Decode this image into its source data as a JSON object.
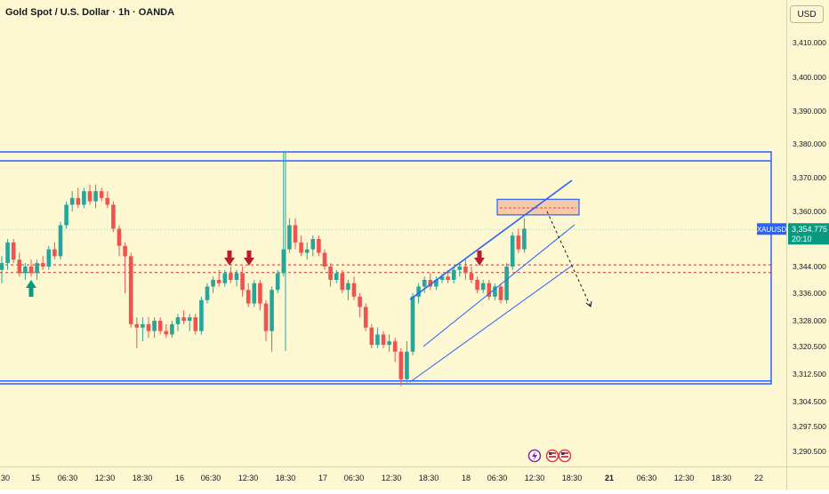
{
  "header": {
    "title": "Gold Spot / U.S. Dollar · 1h · OANDA"
  },
  "axis": {
    "currency_button": "USD"
  },
  "price_tag": {
    "symbol": "XAUUSD",
    "price": "3,354.775",
    "countdown": "20:10"
  },
  "colors": {
    "background": "#fdf8d2",
    "up_candle": "#26a69a",
    "down_candle": "#ef5350",
    "drawing_blue": "#2962ff",
    "tag_blue": "#2962ff",
    "zone_fill": "#f6c9a8",
    "arrow_up": "#089981",
    "arrow_down": "#b71c2f"
  },
  "icons": [
    "flash-event-icon",
    "us-flag-event-icon",
    "us-flag-event-icon"
  ],
  "chart_data": {
    "type": "candlestick",
    "title": "Gold Spot / U.S. Dollar · 1h · OANDA",
    "y_axis": {
      "side": "right",
      "ticks": [
        3410.0,
        3400.0,
        3390.0,
        3380.0,
        3370.0,
        3360.0,
        3344.0,
        3336.0,
        3328.0,
        3320.5,
        3312.5,
        3304.5,
        3297.5,
        3290.5
      ],
      "tick_labels": [
        "3,410.000",
        "3,400.000",
        "3,390.000",
        "3,380.000",
        "3,370.000",
        "3,360.000",
        "3,344.000",
        "3,336.000",
        "3,328.000",
        "3,320.500",
        "3,312.500",
        "3,304.500",
        "3,297.500",
        "3,290.500"
      ]
    },
    "x_axis": {
      "tick_labels": [
        "30",
        "15",
        "06:30",
        "12:30",
        "18:30",
        "16",
        "06:30",
        "12:30",
        "18:30",
        "17",
        "06:30",
        "12:30",
        "18:30",
        "18",
        "06:30",
        "12:30",
        "18:30",
        "21",
        "06:30",
        "12:30",
        "18:30",
        "22"
      ],
      "bold_labels": [
        "21"
      ]
    },
    "ohlc": [
      [
        3343.0,
        3347.0,
        3339.0,
        3345.0
      ],
      [
        3345.0,
        3352.0,
        3343.0,
        3351.0
      ],
      [
        3351.0,
        3352.0,
        3345.0,
        3346.0
      ],
      [
        3346.0,
        3348.0,
        3341.0,
        3342.0
      ],
      [
        3342.0,
        3345.0,
        3340.0,
        3344.0
      ],
      [
        3344.0,
        3346.0,
        3341.0,
        3342.0
      ],
      [
        3342.0,
        3346.0,
        3340.0,
        3345.0
      ],
      [
        3345.0,
        3347.0,
        3343.0,
        3344.0
      ],
      [
        3344.0,
        3350.0,
        3343.0,
        3349.0
      ],
      [
        3349.0,
        3351.0,
        3346.0,
        3347.0
      ],
      [
        3347.0,
        3357.0,
        3346.0,
        3356.0
      ],
      [
        3356.0,
        3363.0,
        3355.0,
        3362.0
      ],
      [
        3362.0,
        3366.0,
        3360.0,
        3364.0
      ],
      [
        3364.0,
        3367.0,
        3361.0,
        3362.0
      ],
      [
        3362.0,
        3367.0,
        3361.0,
        3366.0
      ],
      [
        3366.0,
        3368.0,
        3362.0,
        3363.0
      ],
      [
        3363.0,
        3368.0,
        3361.0,
        3366.0
      ],
      [
        3366.0,
        3367.0,
        3363.0,
        3364.0
      ],
      [
        3364.0,
        3366.0,
        3361.0,
        3362.0
      ],
      [
        3362.0,
        3363.0,
        3354.0,
        3355.0
      ],
      [
        3355.0,
        3356.0,
        3347.0,
        3350.0
      ],
      [
        3350.0,
        3351.0,
        3336.0,
        3347.0
      ],
      [
        3347.0,
        3348.0,
        3326.0,
        3327.0
      ],
      [
        3327.0,
        3329.0,
        3320.0,
        3326.0
      ],
      [
        3326.0,
        3329.0,
        3322.0,
        3327.0
      ],
      [
        3327.0,
        3329.0,
        3323.0,
        3325.0
      ],
      [
        3325.0,
        3329.0,
        3323.0,
        3328.0
      ],
      [
        3328.0,
        3329.0,
        3324.0,
        3325.0
      ],
      [
        3325.0,
        3327.0,
        3323.0,
        3324.0
      ],
      [
        3324.0,
        3328.0,
        3323.0,
        3327.0
      ],
      [
        3327.0,
        3330.0,
        3325.0,
        3329.0
      ],
      [
        3329.0,
        3331.0,
        3327.0,
        3328.0
      ],
      [
        3328.0,
        3330.0,
        3325.0,
        3329.0
      ],
      [
        3329.0,
        3330.0,
        3324.0,
        3325.0
      ],
      [
        3325.0,
        3335.0,
        3324.0,
        3334.0
      ],
      [
        3334.0,
        3339.0,
        3333.0,
        3338.0
      ],
      [
        3338.0,
        3341.0,
        3336.0,
        3340.0
      ],
      [
        3340.0,
        3343.0,
        3338.0,
        3339.0
      ],
      [
        3339.0,
        3343.0,
        3338.0,
        3342.0
      ],
      [
        3342.0,
        3344.0,
        3339.0,
        3340.0
      ],
      [
        3340.0,
        3343.0,
        3338.0,
        3342.0
      ],
      [
        3342.0,
        3344.0,
        3335.0,
        3337.0
      ],
      [
        3337.0,
        3339.0,
        3332.0,
        3333.0
      ],
      [
        3333.0,
        3340.0,
        3332.0,
        3339.0
      ],
      [
        3339.0,
        3340.0,
        3331.0,
        3333.0
      ],
      [
        3333.0,
        3334.0,
        3322.0,
        3325.0
      ],
      [
        3325.0,
        3338.0,
        3319.0,
        3337.0
      ],
      [
        3337.0,
        3343.0,
        3336.0,
        3342.0
      ],
      [
        3342.0,
        3378.0,
        3341.0,
        3349.0
      ],
      [
        3349.0,
        3358.0,
        3348.0,
        3356.0
      ],
      [
        3356.0,
        3358.0,
        3349.0,
        3351.0
      ],
      [
        3351.0,
        3353.0,
        3347.0,
        3348.0
      ],
      [
        3348.0,
        3351.0,
        3346.0,
        3349.0
      ],
      [
        3349.0,
        3353.0,
        3347.0,
        3352.0
      ],
      [
        3352.0,
        3353.0,
        3347.0,
        3348.0
      ],
      [
        3348.0,
        3349.0,
        3343.0,
        3344.0
      ],
      [
        3344.0,
        3345.0,
        3338.0,
        3340.0
      ],
      [
        3340.0,
        3343.0,
        3339.0,
        3342.0
      ],
      [
        3342.0,
        3343.0,
        3336.0,
        3337.0
      ],
      [
        3337.0,
        3340.0,
        3334.0,
        3339.0
      ],
      [
        3339.0,
        3341.0,
        3334.0,
        3335.0
      ],
      [
        3335.0,
        3336.0,
        3329.0,
        3332.0
      ],
      [
        3332.0,
        3333.0,
        3325.0,
        3326.0
      ],
      [
        3326.0,
        3327.0,
        3320.0,
        3321.0
      ],
      [
        3321.0,
        3326.0,
        3320.0,
        3324.0
      ],
      [
        3324.0,
        3325.0,
        3320.0,
        3321.0
      ],
      [
        3321.0,
        3324.0,
        3319.0,
        3322.0
      ],
      [
        3322.0,
        3323.0,
        3316.0,
        3319.0
      ],
      [
        3319.0,
        3320.0,
        3309.0,
        3311.0
      ],
      [
        3311.0,
        3322.0,
        3310.0,
        3319.0
      ],
      [
        3319.0,
        3336.0,
        3318.0,
        3335.0
      ],
      [
        3335.0,
        3339.0,
        3333.0,
        3338.0
      ],
      [
        3338.0,
        3341.0,
        3336.0,
        3340.0
      ],
      [
        3340.0,
        3342.0,
        3337.0,
        3338.0
      ],
      [
        3338.0,
        3341.0,
        3337.0,
        3340.0
      ],
      [
        3340.0,
        3342.0,
        3339.0,
        3341.0
      ],
      [
        3341.0,
        3343.0,
        3339.0,
        3340.0
      ],
      [
        3340.0,
        3344.0,
        3339.0,
        3343.0
      ],
      [
        3343.0,
        3345.0,
        3341.0,
        3344.0
      ],
      [
        3344.0,
        3346.0,
        3340.0,
        3342.0
      ],
      [
        3342.0,
        3344.0,
        3339.0,
        3340.0
      ],
      [
        3340.0,
        3341.0,
        3336.0,
        3337.0
      ],
      [
        3337.0,
        3340.0,
        3336.0,
        3339.0
      ],
      [
        3339.0,
        3340.0,
        3334.0,
        3335.0
      ],
      [
        3335.0,
        3339.0,
        3334.0,
        3338.0
      ],
      [
        3338.0,
        3339.0,
        3333.0,
        3334.0
      ],
      [
        3334.0,
        3345.0,
        3333.0,
        3344.0
      ],
      [
        3344.0,
        3354.0,
        3343.0,
        3353.0
      ],
      [
        3353.0,
        3355.0,
        3348.0,
        3349.0
      ],
      [
        3349.0,
        3358.0,
        3348.0,
        3355.0
      ]
    ],
    "annotations": {
      "range_box": {
        "top": 3375.0,
        "bottom": 3310.5
      },
      "dashed_levels": [
        3344.5,
        3342.2
      ],
      "supply_zone": {
        "top": 3363.6,
        "bottom": 3359.0
      },
      "channel": "ascending",
      "projection": "dashed arrow pointing down",
      "signal_arrows": {
        "up": 1,
        "down": 3
      }
    }
  }
}
